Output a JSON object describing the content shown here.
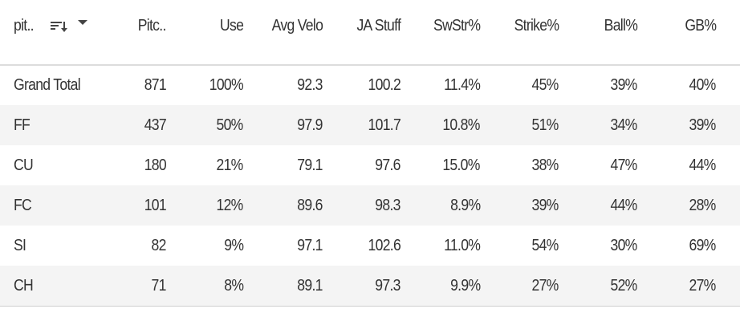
{
  "table": {
    "columns": [
      "pit..",
      "Pitc..",
      "Use",
      "Avg Velo",
      "JA Stuff",
      "SwStr%",
      "Strike%",
      "Ball%",
      "GB%"
    ],
    "rows": [
      [
        "Grand Total",
        "871",
        "100%",
        "92.3",
        "100.2",
        "11.4%",
        "45%",
        "39%",
        "40%"
      ],
      [
        "FF",
        "437",
        "50%",
        "97.9",
        "101.7",
        "10.8%",
        "51%",
        "34%",
        "39%"
      ],
      [
        "CU",
        "180",
        "21%",
        "79.1",
        "97.6",
        "15.0%",
        "38%",
        "47%",
        "44%"
      ],
      [
        "FC",
        "101",
        "12%",
        "89.6",
        "98.3",
        "8.9%",
        "39%",
        "44%",
        "28%"
      ],
      [
        "SI",
        "82",
        "9%",
        "97.1",
        "102.6",
        "11.0%",
        "54%",
        "30%",
        "69%"
      ],
      [
        "CH",
        "71",
        "8%",
        "89.1",
        "97.3",
        "9.9%",
        "27%",
        "52%",
        "27%"
      ]
    ]
  }
}
